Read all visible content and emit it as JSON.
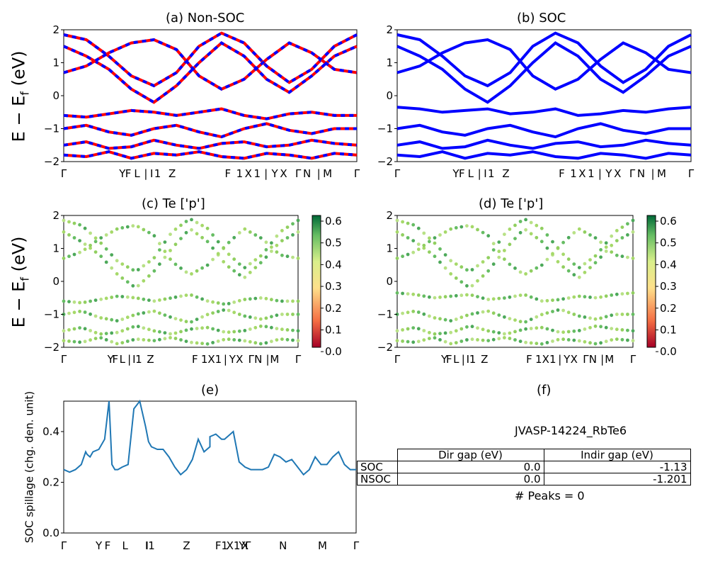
{
  "kpath_labels": [
    "Γ",
    "Y",
    "F",
    "L",
    "|",
    "I",
    "I1",
    "Z",
    "F1",
    "X1",
    "Y",
    "X",
    "Γ",
    "N",
    "|",
    "M",
    "Γ"
  ],
  "colors": {
    "nonsoc_a": "#ff0000",
    "nonsoc_b": "#0000ff",
    "soc": "#0000ff",
    "spillage": "#1f77b4",
    "cmap": [
      "#a50026",
      "#f46d43",
      "#fee08b",
      "#d9ef8b",
      "#66bd63",
      "#006837"
    ]
  },
  "panels": {
    "a": {
      "title": "(a) Non-SOC",
      "ylabel": "E − E_f (eV)",
      "yticks": [
        "2",
        "1",
        "0",
        "−1",
        "−2"
      ],
      "ylim": [
        -2,
        2
      ],
      "xticks": [
        "Γ",
        "Y",
        "F",
        "L",
        "|",
        "I",
        "1",
        "Z",
        "F",
        "1",
        "X",
        "1",
        "|",
        "Y",
        "X",
        "Γ",
        "N",
        "|",
        "M",
        "Γ"
      ]
    },
    "b": {
      "title": "(b) SOC",
      "yticks": [
        "2",
        "1",
        "0",
        "−1",
        "−2"
      ],
      "ylim": [
        -2,
        2
      ]
    },
    "c": {
      "title": "(c)  Te ['p']",
      "ylabel": "E − E_f (eV)",
      "yticks": [
        "2",
        "1",
        "0",
        "−1",
        "−2"
      ],
      "ylim": [
        -2,
        2
      ],
      "colorbar_ticks": [
        "0.6",
        "0.5",
        "0.4",
        "0.3",
        "0.2",
        "0.1",
        "0.0"
      ]
    },
    "d": {
      "title": "(d) Te ['p']",
      "yticks": [
        "2",
        "1",
        "0",
        "−1",
        "−2"
      ],
      "ylim": [
        -2,
        2
      ],
      "colorbar_ticks": [
        "0.6",
        "0.5",
        "0.4",
        "0.3",
        "0.2",
        "0.1",
        "0.0"
      ]
    },
    "e": {
      "title": "(e)",
      "ylabel": "SOC spillage (chg. den. unit)",
      "yticks": [
        "0.4",
        "0.2",
        "0.0"
      ],
      "ylim": [
        0.0,
        0.52
      ]
    },
    "f": {
      "title": "(f)",
      "material": "JVASP-14224_RbTe6",
      "peaks": "# Peaks = 0",
      "table": {
        "headers": [
          "",
          "Dir gap (eV)",
          "Indir gap (eV)"
        ],
        "rows": [
          [
            "SOC",
            "0.0",
            "-1.13"
          ],
          [
            "NSOC",
            "0.0",
            "-1.201"
          ]
        ]
      }
    }
  },
  "chart_data": [
    {
      "type": "line",
      "title": "(a) Non-SOC",
      "ylabel": "E − E_f (eV)",
      "ylim": [
        -2,
        2
      ],
      "grid": false,
      "series": [
        {
          "values": [
            1.85,
            1.7,
            1.2,
            0.6,
            0.3,
            0.7,
            1.5,
            1.9,
            1.6,
            0.9,
            0.4,
            0.8,
            1.5,
            1.85
          ]
        },
        {
          "values": [
            1.5,
            1.2,
            0.8,
            0.2,
            -0.2,
            0.3,
            1.0,
            1.6,
            1.2,
            0.5,
            0.1,
            0.6,
            1.2,
            1.5
          ]
        },
        {
          "values": [
            0.7,
            0.9,
            1.3,
            1.6,
            1.7,
            1.4,
            0.6,
            0.2,
            0.5,
            1.1,
            1.6,
            1.3,
            0.8,
            0.7
          ]
        },
        {
          "values": [
            -0.6,
            -0.65,
            -0.55,
            -0.45,
            -0.5,
            -0.6,
            -0.5,
            -0.4,
            -0.6,
            -0.7,
            -0.55,
            -0.5,
            -0.6,
            -0.6
          ]
        },
        {
          "values": [
            -1.0,
            -0.9,
            -1.1,
            -1.2,
            -1.0,
            -0.9,
            -1.1,
            -1.25,
            -1.0,
            -0.85,
            -1.05,
            -1.15,
            -1.0,
            -1.0
          ]
        },
        {
          "values": [
            -1.5,
            -1.4,
            -1.6,
            -1.55,
            -1.35,
            -1.5,
            -1.6,
            -1.45,
            -1.4,
            -1.55,
            -1.5,
            -1.35,
            -1.45,
            -1.5
          ]
        },
        {
          "values": [
            -1.8,
            -1.85,
            -1.7,
            -1.9,
            -1.75,
            -1.8,
            -1.7,
            -1.85,
            -1.9,
            -1.75,
            -1.8,
            -1.9,
            -1.75,
            -1.8
          ]
        }
      ]
    },
    {
      "type": "line",
      "title": "(b) SOC",
      "ylim": [
        -2,
        2
      ],
      "grid": false,
      "series": [
        {
          "values": [
            1.85,
            1.7,
            1.2,
            0.6,
            0.3,
            0.7,
            1.5,
            1.9,
            1.6,
            0.9,
            0.4,
            0.8,
            1.5,
            1.85
          ]
        },
        {
          "values": [
            1.5,
            1.2,
            0.8,
            0.2,
            -0.2,
            0.3,
            1.0,
            1.6,
            1.2,
            0.5,
            0.1,
            0.6,
            1.2,
            1.5
          ]
        },
        {
          "values": [
            0.7,
            0.9,
            1.3,
            1.6,
            1.7,
            1.4,
            0.6,
            0.2,
            0.5,
            1.1,
            1.6,
            1.3,
            0.8,
            0.7
          ]
        },
        {
          "values": [
            -0.35,
            -0.4,
            -0.5,
            -0.45,
            -0.4,
            -0.55,
            -0.5,
            -0.4,
            -0.6,
            -0.55,
            -0.45,
            -0.5,
            -0.4,
            -0.35
          ]
        },
        {
          "values": [
            -1.0,
            -0.9,
            -1.1,
            -1.2,
            -1.0,
            -0.9,
            -1.1,
            -1.25,
            -1.0,
            -0.85,
            -1.05,
            -1.15,
            -1.0,
            -1.0
          ]
        },
        {
          "values": [
            -1.5,
            -1.4,
            -1.6,
            -1.55,
            -1.35,
            -1.5,
            -1.6,
            -1.45,
            -1.4,
            -1.55,
            -1.5,
            -1.35,
            -1.45,
            -1.5
          ]
        },
        {
          "values": [
            -1.8,
            -1.85,
            -1.7,
            -1.9,
            -1.75,
            -1.8,
            -1.7,
            -1.85,
            -1.9,
            -1.75,
            -1.8,
            -1.9,
            -1.75,
            -1.8
          ]
        }
      ]
    },
    {
      "type": "scatter",
      "title": "(c)  Te ['p']",
      "ylim": [
        -2,
        2
      ],
      "colorbar": [
        0.0,
        0.63
      ]
    },
    {
      "type": "scatter",
      "title": "(d) Te ['p']",
      "ylim": [
        -2,
        2
      ],
      "colorbar": [
        0.0,
        0.62
      ]
    },
    {
      "type": "line",
      "title": "(e)",
      "ylabel": "SOC spillage (chg. den. unit)",
      "ylim": [
        0.0,
        0.52
      ],
      "x": [
        0,
        0.02,
        0.04,
        0.06,
        0.075,
        0.08,
        0.09,
        0.1,
        0.12,
        0.14,
        0.155,
        0.165,
        0.175,
        0.185,
        0.2,
        0.22,
        0.24,
        0.26,
        0.28,
        0.29,
        0.3,
        0.32,
        0.34,
        0.36,
        0.38,
        0.4,
        0.42,
        0.44,
        0.46,
        0.48,
        0.5,
        0.5,
        0.52,
        0.54,
        0.55,
        0.56,
        0.58,
        0.6,
        0.62,
        0.64,
        0.66,
        0.68,
        0.7,
        0.72,
        0.74,
        0.76,
        0.78,
        0.8,
        0.82,
        0.84,
        0.86,
        0.88,
        0.9,
        0.92,
        0.94,
        0.96,
        0.98,
        1.0
      ],
      "values": [
        0.25,
        0.24,
        0.25,
        0.27,
        0.32,
        0.31,
        0.3,
        0.32,
        0.33,
        0.37,
        0.52,
        0.27,
        0.25,
        0.25,
        0.26,
        0.27,
        0.49,
        0.52,
        0.42,
        0.36,
        0.34,
        0.33,
        0.33,
        0.3,
        0.26,
        0.23,
        0.25,
        0.29,
        0.37,
        0.32,
        0.34,
        0.38,
        0.39,
        0.37,
        0.37,
        0.38,
        0.4,
        0.28,
        0.26,
        0.25,
        0.25,
        0.25,
        0.26,
        0.31,
        0.3,
        0.28,
        0.29,
        0.26,
        0.23,
        0.25,
        0.3,
        0.27,
        0.27,
        0.3,
        0.32,
        0.27,
        0.25,
        0.25
      ]
    }
  ]
}
